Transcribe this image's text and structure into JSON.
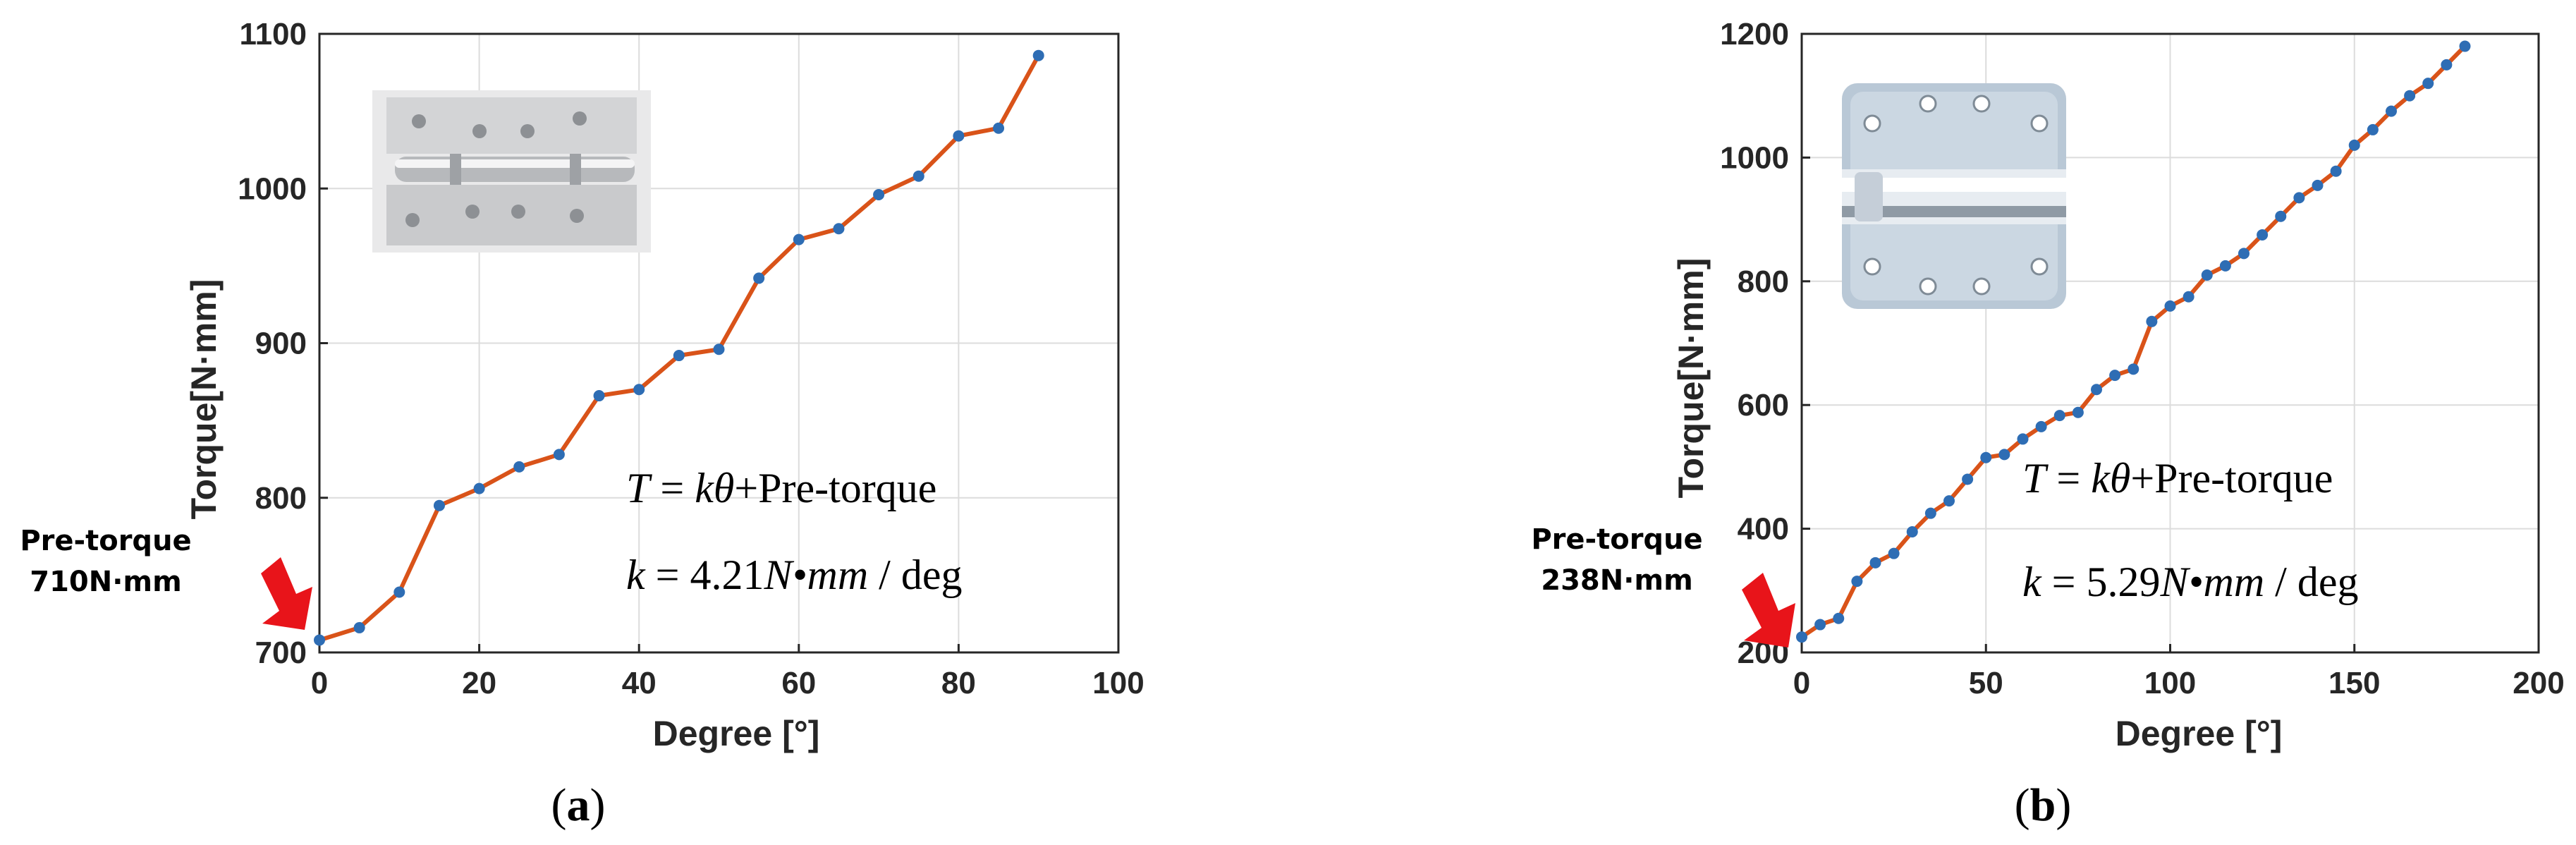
{
  "colors": {
    "line": "#D95319",
    "marker": "#2E6DB4",
    "grid": "#DCDCDC",
    "axis": "#262626",
    "arrow": "#E8141A"
  },
  "chart_data": [
    {
      "type": "line",
      "panel_label": "a",
      "xlabel": "Degree [°]",
      "ylabel": "Torque[N·mm]",
      "xlim": [
        0,
        100
      ],
      "ylim": [
        700,
        1100
      ],
      "xticks": [
        0,
        20,
        40,
        60,
        80,
        100
      ],
      "yticks": [
        700,
        800,
        900,
        1000,
        1100
      ],
      "grid": true,
      "x": [
        0,
        5,
        10,
        15,
        20,
        25,
        30,
        35,
        40,
        45,
        50,
        55,
        60,
        65,
        70,
        75,
        80,
        85,
        90
      ],
      "y": [
        708,
        716,
        739,
        795,
        806,
        820,
        828,
        866,
        870,
        892,
        896,
        942,
        967,
        974,
        996,
        1008,
        1034,
        1039,
        1086
      ],
      "pretorque_label": [
        "Pre-torque",
        "710N·mm"
      ],
      "equation": {
        "line1_italic": "T",
        "line1_mid": " = ",
        "line1_var": "kθ",
        "line1_rest": "+Pre-torque",
        "line2_var": "k",
        "line2_eq": " = 4.21",
        "line2_unit": "N•mm",
        "line2_rest": " / deg"
      },
      "inset_icon": "hinge-photo-icon"
    },
    {
      "type": "line",
      "panel_label": "b",
      "xlabel": "Degree [°]",
      "ylabel": "Torque[N·mm]",
      "xlim": [
        0,
        200
      ],
      "ylim": [
        200,
        1200
      ],
      "xticks": [
        0,
        50,
        100,
        150,
        200
      ],
      "yticks": [
        200,
        400,
        600,
        800,
        1000,
        1200
      ],
      "grid": true,
      "x": [
        0,
        5,
        10,
        15,
        20,
        25,
        30,
        35,
        40,
        45,
        50,
        55,
        60,
        65,
        70,
        75,
        80,
        85,
        90,
        95,
        100,
        105,
        110,
        115,
        120,
        125,
        130,
        135,
        140,
        145,
        150,
        155,
        160,
        165,
        170,
        175,
        180
      ],
      "y": [
        225,
        245,
        255,
        315,
        345,
        360,
        395,
        425,
        445,
        480,
        515,
        520,
        545,
        565,
        583,
        588,
        625,
        648,
        658,
        735,
        760,
        775,
        810,
        825,
        845,
        875,
        905,
        935,
        955,
        978,
        1020,
        1045,
        1075,
        1100,
        1120,
        1150,
        1180
      ],
      "pretorque_label": [
        "Pre-torque",
        "238N·mm"
      ],
      "equation": {
        "line1_italic": "T",
        "line1_mid": " = ",
        "line1_var": "kθ",
        "line1_rest": "+Pre-torque",
        "line2_var": "k",
        "line2_eq": " = 5.29",
        "line2_unit": "N•mm",
        "line2_rest": " / deg"
      },
      "inset_icon": "spring-hinge-photo-icon"
    }
  ],
  "captions": {
    "a": {
      "open": "(",
      "letter": "a",
      "close": ")"
    },
    "b": {
      "open": "(",
      "letter": "b",
      "close": ")"
    }
  }
}
